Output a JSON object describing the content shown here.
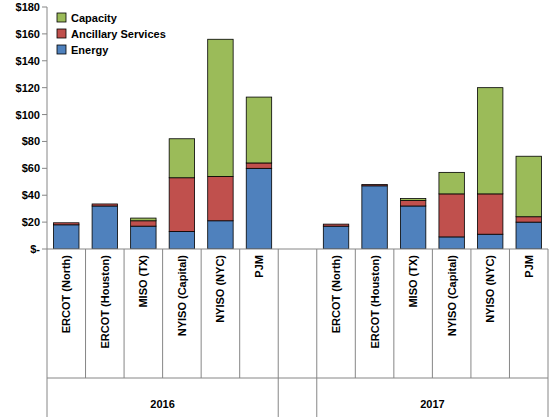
{
  "chart_data": {
    "type": "bar",
    "stacked": true,
    "grid": false,
    "legend": "upper left",
    "categories": [
      "ERCOT (North)",
      "ERCOT (Houston)",
      "MISO (TX)",
      "NYISO (Capital)",
      "NYISO (NYC)",
      "PJM",
      null,
      "ERCOT (North)",
      "ERCOT (Houston)",
      "MISO (TX)",
      "NYISO (Capital)",
      "NYISO (NYC)",
      "PJM"
    ],
    "x_groups": [
      "2016",
      "2017"
    ],
    "series": [
      {
        "name": "Energy",
        "color": "#4f81bd",
        "values": [
          18,
          32,
          17,
          13,
          21,
          60,
          null,
          17,
          47,
          32,
          9,
          11,
          20
        ]
      },
      {
        "name": "Ancillary Services",
        "color": "#c0504d",
        "values": [
          1.5,
          1.5,
          4,
          40,
          33,
          4,
          null,
          1.5,
          1,
          4,
          32,
          30,
          4
        ]
      },
      {
        "name": "Capacity",
        "color": "#9bbb59",
        "values": [
          0,
          0,
          2,
          29,
          102,
          49,
          null,
          0,
          0,
          1.5,
          16,
          79,
          45
        ]
      }
    ],
    "ylim": [
      0,
      180
    ],
    "yticks": [
      {
        "value": 0,
        "label": "$-"
      },
      {
        "value": 20,
        "label": "$20"
      },
      {
        "value": 40,
        "label": "$40"
      },
      {
        "value": 60,
        "label": "$60"
      },
      {
        "value": 80,
        "label": "$80"
      },
      {
        "value": 100,
        "label": "$100"
      },
      {
        "value": 120,
        "label": "$120"
      },
      {
        "value": 140,
        "label": "$140"
      },
      {
        "value": 160,
        "label": "$160"
      },
      {
        "value": 180,
        "label": "$180"
      }
    ]
  }
}
